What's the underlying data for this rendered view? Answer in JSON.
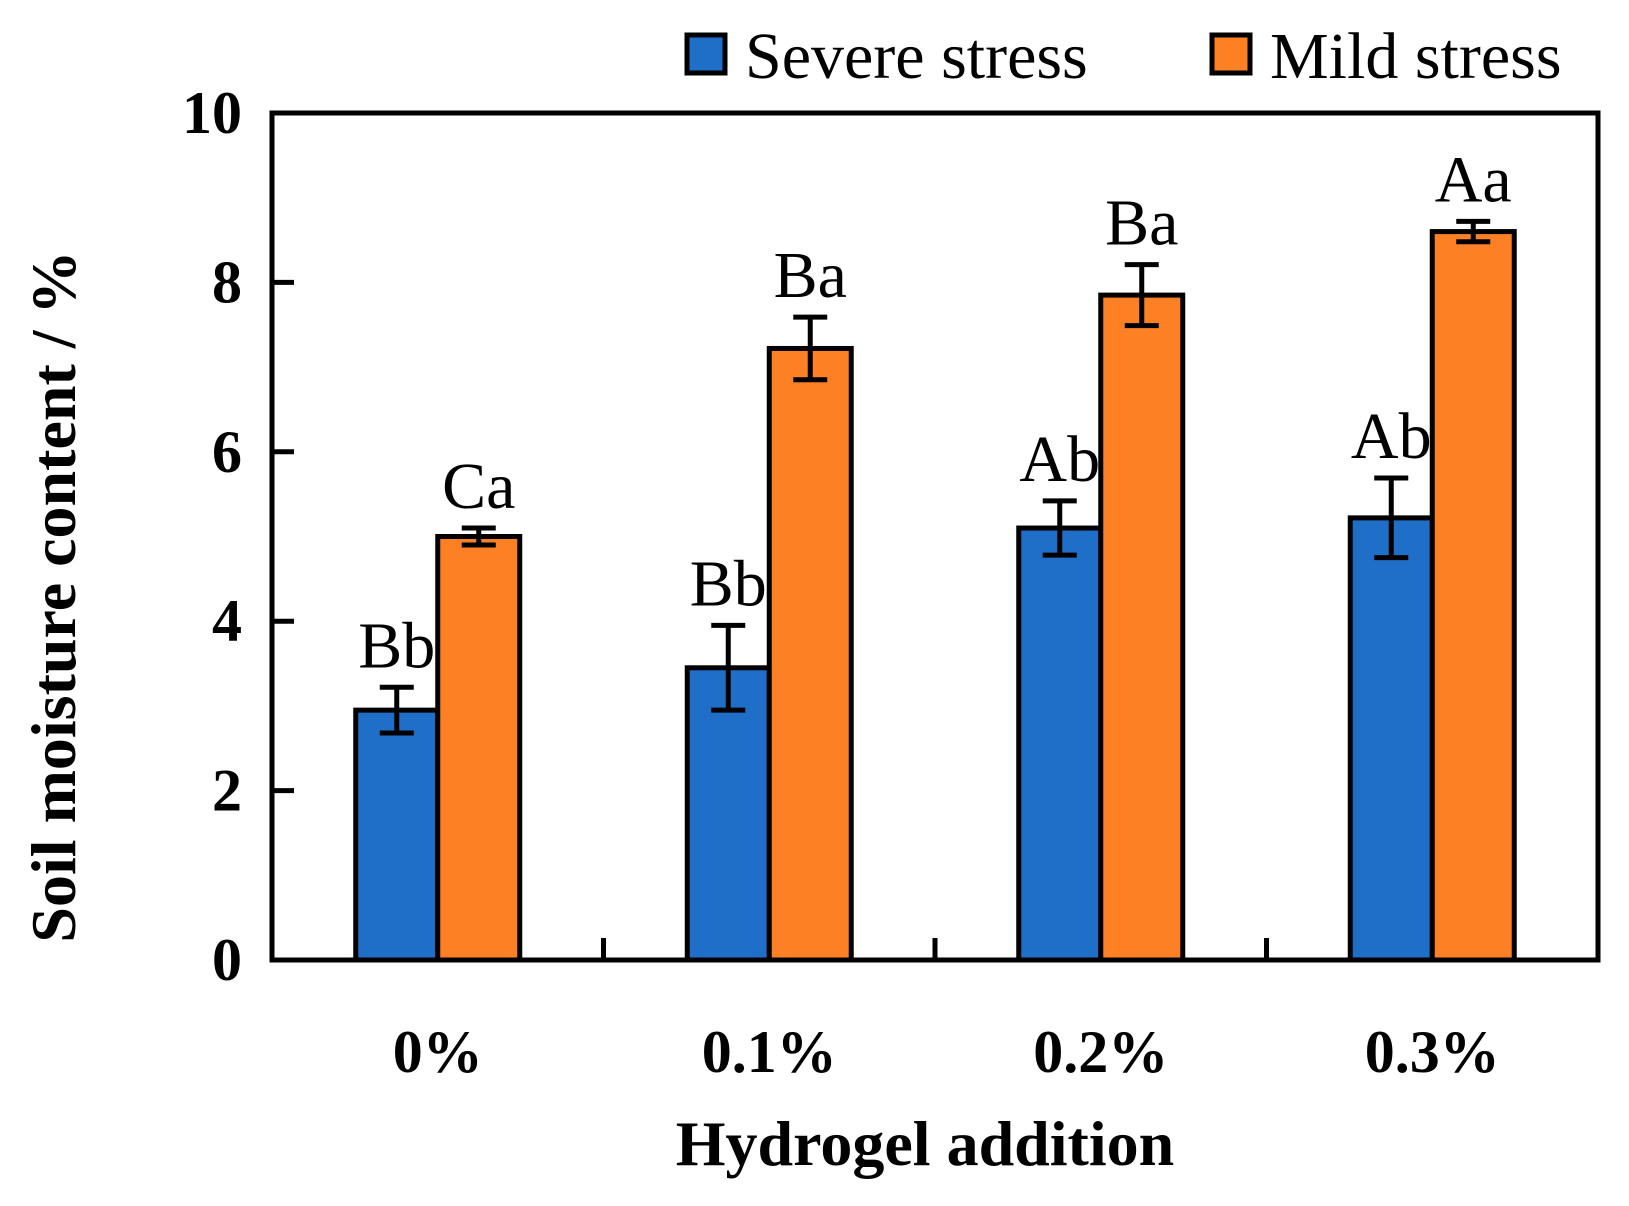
{
  "chart_data": {
    "type": "bar",
    "title": "",
    "xlabel": "Hydrogel addition",
    "ylabel": "Soil moisture content / %",
    "categories": [
      "0%",
      "0.1%",
      "0.2%",
      "0.3%"
    ],
    "ylim": [
      0,
      10
    ],
    "yticks": [
      0,
      2,
      4,
      6,
      8,
      10
    ],
    "legend_position": "top-right",
    "grid": false,
    "series": [
      {
        "name": "Severe stress",
        "color": "#1f6fc8",
        "values": [
          2.95,
          3.45,
          5.1,
          5.22
        ],
        "errors": [
          0.27,
          0.5,
          0.32,
          0.47
        ],
        "labels": [
          "Bb",
          "Bb",
          "Ab",
          "Ab"
        ]
      },
      {
        "name": "Mild stress",
        "color": "#fe8024",
        "values": [
          5.0,
          7.22,
          7.85,
          8.6
        ],
        "errors": [
          0.1,
          0.37,
          0.36,
          0.12
        ],
        "labels": [
          "Ca",
          "Ba",
          "Ba",
          "Aa"
        ]
      }
    ]
  }
}
